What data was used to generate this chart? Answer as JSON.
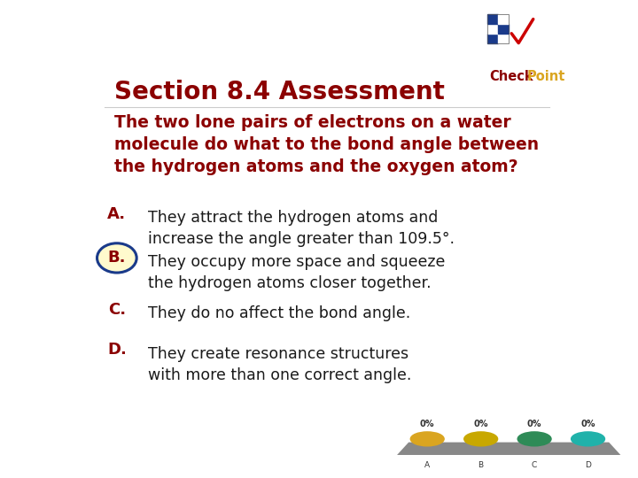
{
  "title": "Section 8.4 Assessment",
  "title_color": "#8B0000",
  "title_fontsize": 20,
  "question": "The two lone pairs of electrons on a water\nmolecule do what to the bond angle between\nthe hydrogen atoms and the oxygen atom?",
  "question_color": "#8B0000",
  "question_fontsize": 13.5,
  "answers": [
    {
      "letter": "A.",
      "letter_color": "#8B0000",
      "text": "They attract the hydrogen atoms and\nincrease the angle greater than 109.5°.",
      "text_color": "#1a1a1a",
      "highlight": false
    },
    {
      "letter": "B.",
      "letter_color": "#8B0000",
      "text": "They occupy more space and squeeze\nthe hydrogen atoms closer together.",
      "text_color": "#1a1a1a",
      "highlight": true
    },
    {
      "letter": "C.",
      "letter_color": "#8B0000",
      "text": "They do no affect the bond angle.",
      "text_color": "#1a1a1a",
      "highlight": false
    },
    {
      "letter": "D.",
      "letter_color": "#8B0000",
      "text": "They create resonance structures\nwith more than one correct angle.",
      "text_color": "#1a1a1a",
      "highlight": false
    }
  ],
  "answer_fontsize": 12.5,
  "bg_color": "#ffffff",
  "bar_colors": [
    "#DAA520",
    "#c8a800",
    "#2e8b57",
    "#20B2AA"
  ],
  "bar_labels": [
    "A",
    "B",
    "C",
    "D"
  ],
  "bar_percentages": [
    "0%",
    "0%",
    "0%",
    "0%"
  ]
}
